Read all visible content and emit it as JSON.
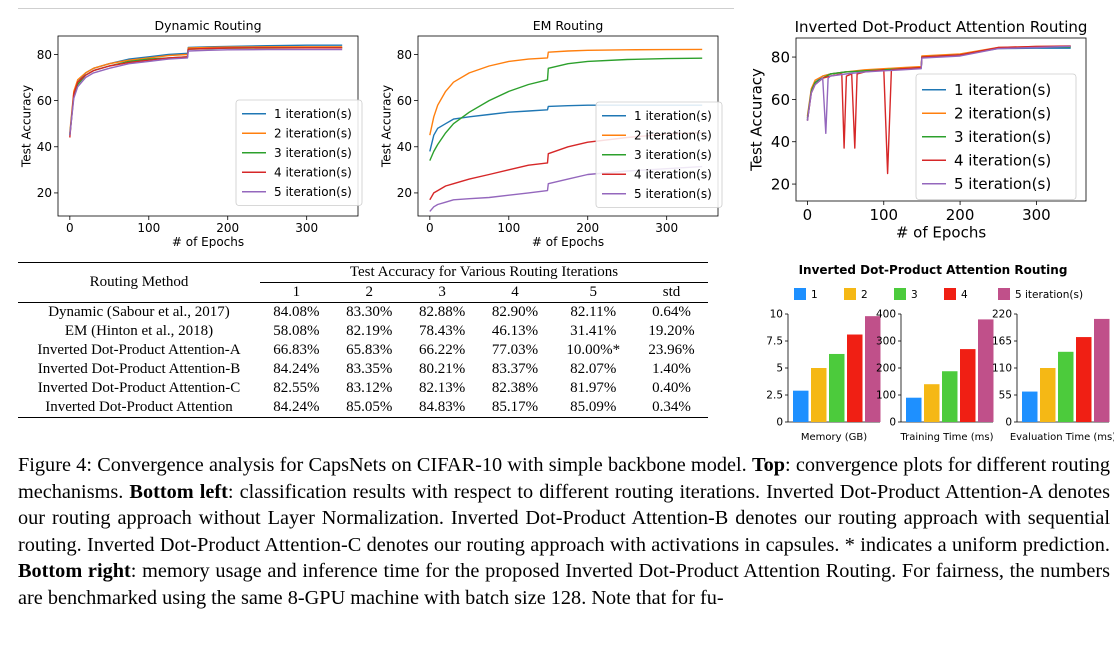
{
  "chart_data": [
    {
      "type": "line",
      "title": "Dynamic Routing",
      "xlabel": "# of Epochs",
      "ylabel": "Test Accuracy",
      "xlim": [
        -15,
        365
      ],
      "ylim": [
        10,
        88
      ],
      "xticks": [
        0,
        100,
        200,
        300
      ],
      "yticks": [
        20,
        40,
        60,
        80
      ],
      "legend": "lower-right",
      "series": [
        {
          "name": "1 iteration(s)",
          "color": "#1f77b4",
          "x": [
            0,
            5,
            10,
            20,
            30,
            50,
            75,
            100,
            125,
            149,
            150,
            175,
            200,
            250,
            300,
            345
          ],
          "y": [
            45,
            63,
            68,
            72,
            74,
            76,
            78,
            79,
            80,
            80.5,
            83,
            83.3,
            83.5,
            83.8,
            84,
            84
          ]
        },
        {
          "name": "2 iteration(s)",
          "color": "#ff7f0e",
          "x": [
            0,
            5,
            10,
            20,
            30,
            50,
            75,
            100,
            125,
            149,
            150,
            175,
            200,
            250,
            300,
            345
          ],
          "y": [
            46,
            64,
            69,
            72,
            74,
            76,
            77.5,
            78.5,
            79.5,
            80,
            82.8,
            83,
            83.2,
            83.3,
            83.3,
            83.3
          ]
        },
        {
          "name": "3 iteration(s)",
          "color": "#2ca02c",
          "x": [
            0,
            5,
            10,
            20,
            30,
            50,
            75,
            100,
            125,
            149,
            150,
            175,
            200,
            250,
            300,
            345
          ],
          "y": [
            45,
            62,
            67,
            71,
            73,
            75,
            77,
            78,
            78.5,
            79,
            82.3,
            82.5,
            82.7,
            82.8,
            82.9,
            82.9
          ]
        },
        {
          "name": "4 iteration(s)",
          "color": "#d62728",
          "x": [
            0,
            5,
            10,
            20,
            30,
            50,
            75,
            100,
            125,
            149,
            150,
            175,
            200,
            250,
            300,
            345
          ],
          "y": [
            44,
            63,
            68,
            71,
            73,
            75,
            76.5,
            77.5,
            78.5,
            79,
            82.3,
            82.6,
            82.8,
            82.9,
            82.9,
            82.9
          ]
        },
        {
          "name": "5 iteration(s)",
          "color": "#9467bd",
          "x": [
            0,
            5,
            10,
            20,
            30,
            50,
            75,
            100,
            125,
            149,
            150,
            175,
            200,
            250,
            300,
            345
          ],
          "y": [
            45,
            61,
            66,
            70,
            72,
            74,
            76,
            77,
            78,
            78.5,
            81.5,
            81.8,
            82,
            82.1,
            82.1,
            82.1
          ]
        }
      ]
    },
    {
      "type": "line",
      "title": "EM Routing",
      "xlabel": "# of Epochs",
      "ylabel": "Test Accuracy",
      "xlim": [
        -15,
        365
      ],
      "ylim": [
        10,
        88
      ],
      "xticks": [
        0,
        100,
        200,
        300
      ],
      "yticks": [
        20,
        40,
        60,
        80
      ],
      "legend": "lower-right",
      "series": [
        {
          "name": "1 iteration(s)",
          "color": "#1f77b4",
          "x": [
            0,
            5,
            10,
            20,
            30,
            50,
            75,
            100,
            125,
            149,
            150,
            175,
            200,
            250,
            300,
            345
          ],
          "y": [
            38,
            45,
            48,
            50,
            52,
            53,
            54,
            55,
            55.5,
            56,
            57.5,
            57.8,
            58,
            58,
            58,
            58
          ]
        },
        {
          "name": "2 iteration(s)",
          "color": "#ff7f0e",
          "x": [
            0,
            5,
            10,
            20,
            30,
            50,
            75,
            100,
            125,
            149,
            150,
            175,
            200,
            250,
            300,
            345
          ],
          "y": [
            45,
            53,
            58,
            64,
            68,
            72,
            75,
            77,
            78,
            78.5,
            81,
            81.5,
            81.8,
            82,
            82.1,
            82.2
          ]
        },
        {
          "name": "3 iteration(s)",
          "color": "#2ca02c",
          "x": [
            0,
            5,
            10,
            20,
            30,
            50,
            75,
            100,
            125,
            149,
            150,
            175,
            200,
            250,
            300,
            345
          ],
          "y": [
            34,
            38,
            41,
            46,
            50,
            55,
            60,
            64,
            67,
            69,
            74,
            76,
            77,
            77.8,
            78.2,
            78.4
          ]
        },
        {
          "name": "4 iteration(s)",
          "color": "#d62728",
          "x": [
            0,
            5,
            10,
            20,
            30,
            50,
            75,
            100,
            125,
            149,
            150,
            175,
            200,
            250,
            300,
            345
          ],
          "y": [
            17,
            20,
            21,
            23,
            24,
            26,
            28,
            30,
            32,
            33,
            37,
            40,
            42,
            44,
            45.5,
            46.1
          ]
        },
        {
          "name": "5 iteration(s)",
          "color": "#9467bd",
          "x": [
            0,
            5,
            10,
            20,
            30,
            50,
            75,
            100,
            125,
            149,
            150,
            175,
            200,
            250,
            300,
            345
          ],
          "y": [
            12,
            14,
            15,
            16,
            17,
            17.5,
            18,
            19,
            20,
            21,
            24,
            26,
            28,
            29.5,
            30.5,
            31.4
          ]
        }
      ]
    },
    {
      "type": "line",
      "title": "Inverted Dot-Product Attention Routing",
      "xlabel": "# of Epochs",
      "ylabel": "Test Accuracy",
      "xlim": [
        -15,
        365
      ],
      "ylim": [
        12,
        89
      ],
      "xticks": [
        0,
        100,
        200,
        300
      ],
      "yticks": [
        20,
        40,
        60,
        80
      ],
      "legend": "right",
      "series": [
        {
          "name": "1 iteration(s)",
          "color": "#1f77b4",
          "x": [
            0,
            5,
            10,
            20,
            30,
            50,
            75,
            100,
            125,
            149,
            150,
            175,
            200,
            250,
            300,
            345
          ],
          "y": [
            50,
            64,
            68,
            71,
            72,
            73,
            73.5,
            74,
            74.5,
            75,
            80,
            80.5,
            81,
            84,
            84.2,
            84.2
          ]
        },
        {
          "name": "2 iteration(s)",
          "color": "#ff7f0e",
          "x": [
            0,
            5,
            10,
            20,
            30,
            50,
            75,
            100,
            125,
            149,
            150,
            175,
            200,
            250,
            300,
            345
          ],
          "y": [
            52,
            65,
            69,
            71,
            72,
            73,
            74,
            74.5,
            75,
            75.5,
            80.5,
            81,
            81.5,
            84.5,
            85,
            85
          ]
        },
        {
          "name": "3 iteration(s)",
          "color": "#2ca02c",
          "x": [
            0,
            5,
            10,
            20,
            30,
            50,
            75,
            100,
            125,
            149,
            150,
            175,
            200,
            250,
            300,
            345
          ],
          "y": [
            51,
            64,
            68,
            70,
            72,
            73,
            73.5,
            74,
            74.5,
            75,
            80,
            80.5,
            81,
            84.3,
            84.8,
            84.8
          ]
        },
        {
          "name": "4 iteration(s)",
          "color": "#d62728",
          "x": [
            0,
            5,
            10,
            20,
            30,
            45,
            48,
            51,
            58,
            62,
            65,
            75,
            100,
            105,
            110,
            125,
            149,
            150,
            175,
            200,
            250,
            300,
            345
          ],
          "y": [
            50,
            63,
            67,
            70,
            71,
            72,
            37,
            71,
            72,
            37,
            72,
            73,
            74,
            25,
            74,
            74.5,
            75,
            80,
            80.5,
            81,
            84.5,
            85,
            85.2
          ]
        },
        {
          "name": "5 iteration(s)",
          "color": "#9467bd",
          "x": [
            0,
            5,
            10,
            20,
            24,
            27,
            30,
            50,
            75,
            100,
            125,
            149,
            150,
            175,
            200,
            250,
            300,
            345
          ],
          "y": [
            50,
            63,
            67,
            70,
            44,
            70,
            71,
            72,
            73,
            73.5,
            74,
            74.5,
            79.5,
            80,
            80.5,
            84,
            84.5,
            85.1
          ]
        }
      ]
    },
    {
      "type": "bar",
      "title": "Inverted Dot-Product Attention Routing",
      "legend": "top",
      "series_names": [
        "1",
        "2",
        "3",
        "4",
        "5 iteration(s)"
      ],
      "colors": [
        "#1e90ff",
        "#f5b815",
        "#4ccb3c",
        "#f01f14",
        "#c0508a"
      ],
      "panels": [
        {
          "label": "Memory (GB)",
          "yticks": [
            "10",
            "7.5",
            "5",
            "2.5",
            "0"
          ],
          "ymax": 10,
          "values": [
            2.9,
            5.0,
            6.3,
            8.1,
            9.8
          ]
        },
        {
          "label": "Training Time (ms)",
          "yticks": [
            "400",
            "300",
            "200",
            "100",
            "0"
          ],
          "ymax": 400,
          "values": [
            90,
            140,
            188,
            270,
            380
          ]
        },
        {
          "label": "Evaluation Time (ms)",
          "yticks": [
            "220",
            "165",
            "110",
            "55",
            "0"
          ],
          "ymax": 220,
          "values": [
            62,
            110,
            143,
            173,
            210
          ]
        }
      ]
    }
  ],
  "table": {
    "method_header": "Routing Method",
    "group_header": "Test Accuracy for Various Routing Iterations",
    "columns": [
      "1",
      "2",
      "3",
      "4",
      "5",
      "std"
    ],
    "rows": [
      {
        "method": "Dynamic (Sabour et al., 2017)",
        "values": [
          "84.08%",
          "83.30%",
          "82.88%",
          "82.90%",
          "82.11%",
          "0.64%"
        ]
      },
      {
        "method": "EM (Hinton et al., 2018)",
        "values": [
          "58.08%",
          "82.19%",
          "78.43%",
          "46.13%",
          "31.41%",
          "19.20%"
        ]
      },
      {
        "method": "Inverted Dot-Product Attention-A",
        "values": [
          "66.83%",
          "65.83%",
          "66.22%",
          "77.03%",
          "10.00%*",
          "23.96%"
        ]
      },
      {
        "method": "Inverted Dot-Product Attention-B",
        "values": [
          "84.24%",
          "83.35%",
          "80.21%",
          "83.37%",
          "82.07%",
          "1.40%"
        ]
      },
      {
        "method": "Inverted Dot-Product Attention-C",
        "values": [
          "82.55%",
          "83.12%",
          "82.13%",
          "82.38%",
          "81.97%",
          "0.40%"
        ]
      },
      {
        "method": "Inverted Dot-Product Attention",
        "values": [
          "84.24%",
          "85.05%",
          "84.83%",
          "85.17%",
          "85.09%",
          "0.34%"
        ]
      }
    ]
  },
  "caption": {
    "label": "Figure 4:",
    "s1": "Convergence analysis for CapsNets on CIFAR-10 with simple backbone model.",
    "b1": "Top",
    "s2": ": convergence plots for different routing mechanisms.",
    "b2": "Bottom left",
    "s3": ": classification results with respect to different routing iterations. Inverted Dot-Product Attention-A denotes our routing approach without Layer Normalization. Inverted Dot-Product Attention-B denotes our routing approach with sequential routing. Inverted Dot-Product Attention-C denotes our routing approach with activations in capsules. * indicates a uniform prediction.",
    "b3": "Bottom right",
    "s4": ": memory usage and inference time for the proposed Inverted Dot-Product Attention Routing. For fairness, the numbers are benchmarked using the same 8-GPU machine with batch size 128. Note that for fu-"
  }
}
